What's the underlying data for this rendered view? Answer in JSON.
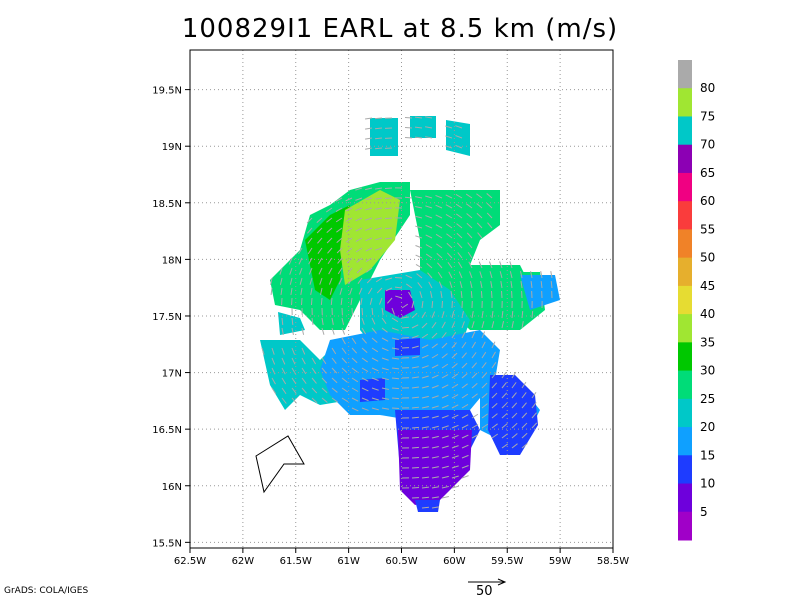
{
  "chart_data": {
    "type": "heatmap",
    "title": "100829I1 EARL at 8.5 km (m/s)",
    "x_ticks": [
      "62.5W",
      "62W",
      "61.5W",
      "61W",
      "60.5W",
      "60W",
      "59.5W",
      "59W",
      "58.5W"
    ],
    "y_ticks": [
      "19.5N",
      "19N",
      "18.5N",
      "18N",
      "17.5N",
      "17N",
      "16.5N",
      "16N",
      "15.5N"
    ],
    "xlim": [
      -62.5,
      -58.5
    ],
    "ylim": [
      15.45,
      19.85
    ],
    "grid": true,
    "colorbar": {
      "labels": [
        "5",
        "10",
        "15",
        "20",
        "25",
        "30",
        "35",
        "40",
        "45",
        "50",
        "55",
        "60",
        "65",
        "70",
        "75",
        "80"
      ],
      "colors": [
        "#a000c8",
        "#6e00dc",
        "#1e3cff",
        "#0fa0ff",
        "#00c8c8",
        "#00dc78",
        "#00c800",
        "#a0e632",
        "#e6dc32",
        "#e6af2d",
        "#f08228",
        "#fa3c3c",
        "#f00082",
        "#8c00b4",
        "#00c8c8",
        "#a0e632",
        "#aaaaaa"
      ]
    },
    "credit": "GrADS: COLA/IGES",
    "reference_vector": {
      "value": 50,
      "label": "50"
    }
  }
}
